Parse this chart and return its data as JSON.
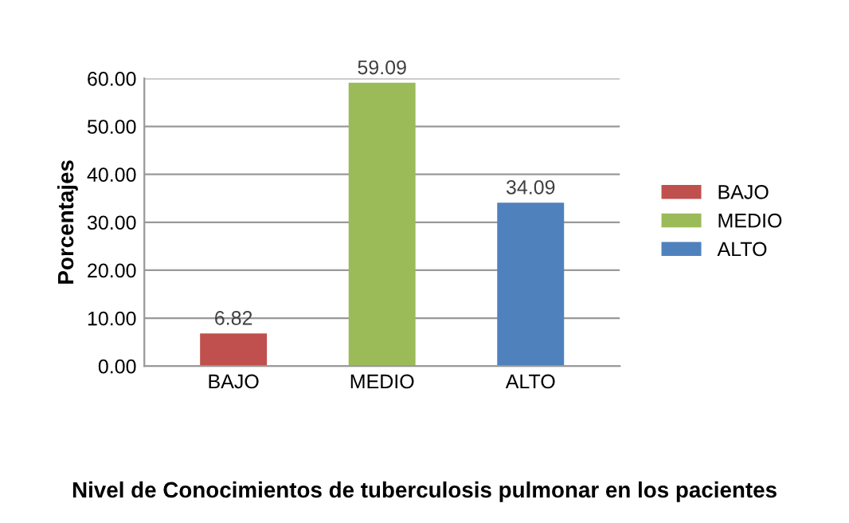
{
  "chart_data": {
    "type": "bar",
    "categories": [
      "BAJO",
      "MEDIO",
      "ALTO"
    ],
    "series": [
      {
        "name": "BAJO",
        "color": "#c0504d",
        "values": [
          6.82,
          null,
          null
        ]
      },
      {
        "name": "MEDIO",
        "color": "#9bbb59",
        "values": [
          null,
          59.09,
          null
        ]
      },
      {
        "name": "ALTO",
        "color": "#4f81bd",
        "values": [
          null,
          null,
          34.09
        ]
      }
    ],
    "ylabel": "Porcentajes",
    "xlabel": "Nivel de Conocimientos de tuberculosis pulmonar en los pacientes",
    "ylim": [
      0,
      60
    ],
    "yticks": [
      {
        "value": 0,
        "label": "0.00"
      },
      {
        "value": 10,
        "label": "10.00"
      },
      {
        "value": 20,
        "label": "20.00"
      },
      {
        "value": 30,
        "label": "30.00"
      },
      {
        "value": 40,
        "label": "40.00"
      },
      {
        "value": 50,
        "label": "50.00"
      },
      {
        "value": 60,
        "label": "60.00"
      }
    ],
    "grid": "y",
    "legend": "right",
    "data_labels": true
  }
}
